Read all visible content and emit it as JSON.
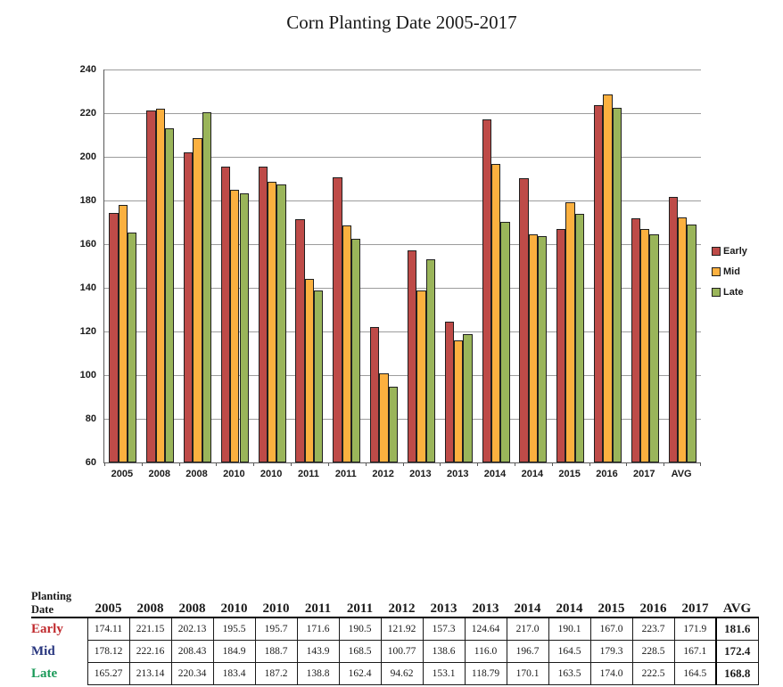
{
  "title": "Corn Planting Date 2005-2017",
  "chart_data": {
    "type": "bar",
    "title": "Corn Planting Date 2005-2017",
    "categories": [
      "2005",
      "2008",
      "2008",
      "2010",
      "2010",
      "2011",
      "2011",
      "2012",
      "2013",
      "2013",
      "2014",
      "2014",
      "2015",
      "2016",
      "2017",
      "AVG"
    ],
    "series": [
      {
        "name": "Early",
        "color": "#BE4B48",
        "values": [
          174.11,
          221.15,
          202.13,
          195.5,
          195.7,
          171.6,
          190.5,
          121.92,
          157.3,
          124.64,
          217.0,
          190.1,
          167.0,
          223.7,
          171.9,
          181.6
        ]
      },
      {
        "name": "Mid",
        "color": "#FBB03F",
        "values": [
          178.12,
          222.16,
          208.43,
          184.9,
          188.7,
          143.9,
          168.5,
          100.77,
          138.6,
          116.0,
          196.7,
          164.5,
          179.3,
          228.5,
          167.1,
          172.4
        ]
      },
      {
        "name": "Late",
        "color": "#9AB55A",
        "values": [
          165.27,
          213.14,
          220.34,
          183.4,
          187.2,
          138.8,
          162.4,
          94.62,
          153.1,
          118.79,
          170.1,
          163.5,
          174.0,
          222.5,
          164.5,
          168.8
        ]
      }
    ],
    "ylim": [
      60,
      240
    ],
    "ytick_step": 20,
    "grid": true,
    "grid_color": "#9C9C9C",
    "axis_color": "#595959",
    "legend_position": "right"
  },
  "table": {
    "corner_label": "Planting Date",
    "columns": [
      "2005",
      "2008",
      "2008",
      "2010",
      "2010",
      "2011",
      "2011",
      "2012",
      "2013",
      "2013",
      "2014",
      "2014",
      "2015",
      "2016",
      "2017",
      "AVG"
    ],
    "rows": [
      {
        "label": "Early",
        "label_color": "#C02A2E",
        "values": [
          "174.11",
          "221.15",
          "202.13",
          "195.5",
          "195.7",
          "171.6",
          "190.5",
          "121.92",
          "157.3",
          "124.64",
          "217.0",
          "190.1",
          "167.0",
          "223.7",
          "171.9",
          "181.6"
        ]
      },
      {
        "label": "Mid",
        "label_color": "#27357E",
        "values": [
          "178.12",
          "222.16",
          "208.43",
          "184.9",
          "188.7",
          "143.9",
          "168.5",
          "100.77",
          "138.6",
          "116.0",
          "196.7",
          "164.5",
          "179.3",
          "228.5",
          "167.1",
          "172.4"
        ]
      },
      {
        "label": "Late",
        "label_color": "#1B9A59",
        "values": [
          "165.27",
          "213.14",
          "220.34",
          "183.4",
          "187.2",
          "138.8",
          "162.4",
          "94.62",
          "153.1",
          "118.79",
          "170.1",
          "163.5",
          "174.0",
          "222.5",
          "164.5",
          "168.8"
        ]
      }
    ]
  }
}
